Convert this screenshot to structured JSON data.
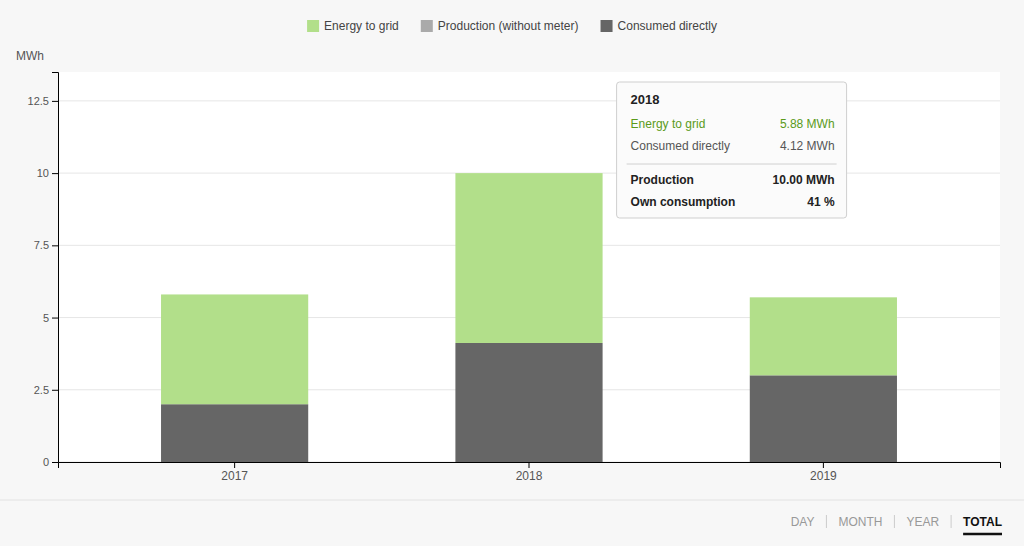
{
  "chart_data": {
    "type": "bar",
    "stacked": true,
    "categories": [
      "2017",
      "2018",
      "2019"
    ],
    "series": [
      {
        "name": "Energy to grid",
        "color": "#b2df8a",
        "values": [
          3.8,
          5.88,
          2.7
        ]
      },
      {
        "name": "Production (without meter)",
        "color": "#aaaaaa",
        "values": [
          null,
          null,
          null
        ]
      },
      {
        "name": "Consumed directly",
        "color": "#666666",
        "values": [
          2.0,
          4.12,
          3.0
        ]
      }
    ],
    "ylabel": "MWh",
    "ylim": [
      0,
      13.5
    ],
    "yticks": [
      0,
      2.5,
      5,
      7.5,
      10,
      12.5
    ],
    "grid": true,
    "legend": "top",
    "annotations": [
      {
        "title": "2018",
        "rows": [
          {
            "label": "Energy to grid",
            "value": "5.88 MWh"
          },
          {
            "label": "Consumed directly",
            "value": "4.12 MWh"
          },
          {
            "label": "Production",
            "value": "10.00 MWh"
          },
          {
            "label": "Own consumption",
            "value": "41 %"
          }
        ]
      },
      {
        "items": [
          "DAY",
          "MONTH",
          "YEAR",
          "TOTAL"
        ]
      }
    ]
  }
}
